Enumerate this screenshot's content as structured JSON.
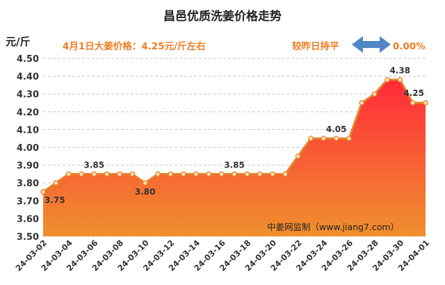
{
  "chart_data": {
    "type": "area",
    "title": "昌邑优质洗姜价格走势",
    "y_unit": "元/斤",
    "price_note": "4月1日大姜价格：4.25元/斤左右",
    "compare_label": "较昨日持平",
    "compare_value": "0.00%",
    "source_note": "中姜网监制（www.jiang7.com）",
    "ylim": [
      3.5,
      4.5
    ],
    "y_ticks": [
      "3.50",
      "3.60",
      "3.70",
      "3.80",
      "3.90",
      "4.00",
      "4.10",
      "4.20",
      "4.30",
      "4.40",
      "4.50"
    ],
    "grid": "horizontal dashed",
    "x_tick_labels": [
      "24-03-02",
      "24-03-04",
      "24-03-06",
      "24-03-08",
      "24-03-10",
      "24-03-12",
      "24-03-14",
      "24-03-16",
      "24-03-18",
      "24-03-20",
      "24-03-22",
      "24-03-24",
      "24-03-26",
      "24-03-28",
      "24-03-30",
      "24-04-01"
    ],
    "x": [
      "24-03-02",
      "24-03-03",
      "24-03-04",
      "24-03-05",
      "24-03-06",
      "24-03-07",
      "24-03-08",
      "24-03-09",
      "24-03-10",
      "24-03-11",
      "24-03-12",
      "24-03-13",
      "24-03-14",
      "24-03-15",
      "24-03-16",
      "24-03-17",
      "24-03-18",
      "24-03-19",
      "24-03-20",
      "24-03-21",
      "24-03-22",
      "24-03-23",
      "24-03-24",
      "24-03-25",
      "24-03-26",
      "24-03-27",
      "24-03-28",
      "24-03-29",
      "24-03-30",
      "24-03-31",
      "24-04-01"
    ],
    "values": [
      3.75,
      3.8,
      3.85,
      3.85,
      3.85,
      3.85,
      3.85,
      3.85,
      3.8,
      3.85,
      3.85,
      3.85,
      3.85,
      3.85,
      3.85,
      3.85,
      3.85,
      3.85,
      3.85,
      3.85,
      3.95,
      4.05,
      4.05,
      4.05,
      4.05,
      4.25,
      4.3,
      4.38,
      4.38,
      4.25,
      4.25
    ],
    "data_labels": [
      {
        "index": 0,
        "text": "3.75"
      },
      {
        "index": 4,
        "text": "3.85"
      },
      {
        "index": 8,
        "text": "3.80"
      },
      {
        "index": 15,
        "text": "3.85"
      },
      {
        "index": 23,
        "text": "4.05"
      },
      {
        "index": 28,
        "text": "4.38"
      },
      {
        "index": 30,
        "text": "4.25"
      }
    ],
    "colors": {
      "line": "#e8802a",
      "marker_fill": "#fde3b8",
      "fill_top": "#ff2a3a",
      "fill_bottom": "#f0902e",
      "accent_text": "#ee7d22",
      "arrow": "#4f86c6"
    }
  }
}
